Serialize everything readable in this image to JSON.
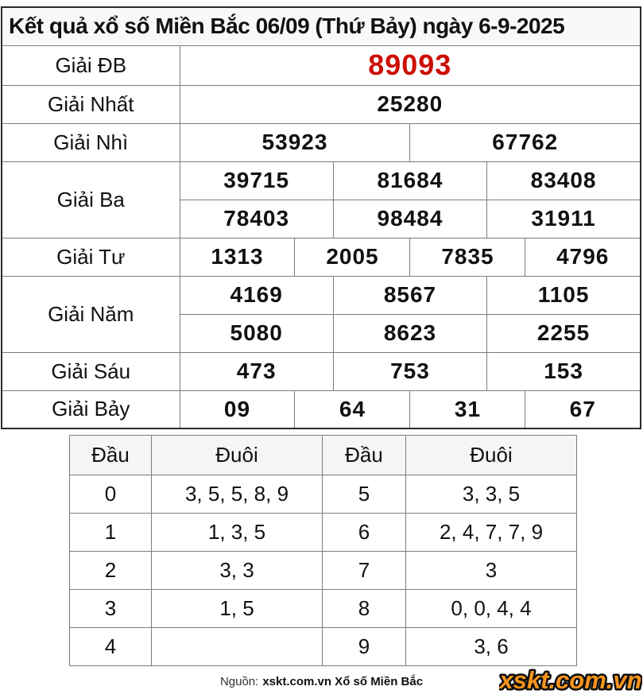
{
  "title": "Kết quả xổ số Miền Bắc 06/09 (Thứ Bảy) ngày 6-9-2025",
  "colors": {
    "special_prize": "#cc0e04",
    "logo_orange": "#f7941d",
    "header_bg": "#f8f8f8",
    "border": "#7d7d7d"
  },
  "prize_table": {
    "rows": [
      {
        "label": "Giải ĐB",
        "special": true,
        "groups": [
          [
            "89093"
          ]
        ]
      },
      {
        "label": "Giải Nhất",
        "special": false,
        "groups": [
          [
            "25280"
          ]
        ]
      },
      {
        "label": "Giải Nhì",
        "special": false,
        "groups": [
          [
            "53923",
            "67762"
          ]
        ]
      },
      {
        "label": "Giải Ba",
        "special": false,
        "groups": [
          [
            "39715",
            "81684",
            "83408"
          ],
          [
            "78403",
            "98484",
            "31911"
          ]
        ]
      },
      {
        "label": "Giải Tư",
        "special": false,
        "groups": [
          [
            "1313",
            "2005",
            "7835",
            "4796"
          ]
        ]
      },
      {
        "label": "Giải Năm",
        "special": false,
        "groups": [
          [
            "4169",
            "8567",
            "1105"
          ],
          [
            "5080",
            "8623",
            "2255"
          ]
        ]
      },
      {
        "label": "Giải Sáu",
        "special": false,
        "groups": [
          [
            "473",
            "753",
            "153"
          ]
        ]
      },
      {
        "label": "Giải Bảy",
        "special": false,
        "groups": [
          [
            "09",
            "64",
            "31",
            "67"
          ]
        ]
      }
    ]
  },
  "digit_table": {
    "headers": [
      "Đầu",
      "Đuôi",
      "Đầu",
      "Đuôi"
    ],
    "rows": [
      [
        "0",
        "3, 5, 5, 8, 9",
        "5",
        "3, 3, 5"
      ],
      [
        "1",
        "1, 3, 5",
        "6",
        "2, 4, 7, 7, 9"
      ],
      [
        "2",
        "3, 3",
        "7",
        "3"
      ],
      [
        "3",
        "1, 5",
        "8",
        "0, 0, 4, 4"
      ],
      [
        "4",
        "",
        "9",
        "3, 6"
      ]
    ]
  },
  "footer": {
    "source_prefix": "Nguồn:",
    "source_bold": "xskt.com.vn Xổ số Miền Bắc",
    "logo_text": "xskt.com.vn"
  }
}
